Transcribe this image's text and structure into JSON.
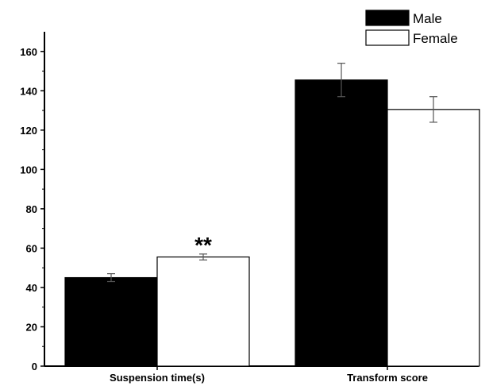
{
  "chart_data": {
    "type": "bar",
    "categories": [
      "Suspension time(s)",
      "Transform score"
    ],
    "series": [
      {
        "name": "Male",
        "values": [
          45,
          145.5
        ],
        "errors": [
          2,
          8.5
        ],
        "color": "#000000"
      },
      {
        "name": "Female",
        "values": [
          55.5,
          130.5
        ],
        "errors": [
          1.5,
          6.5
        ],
        "color": "#ffffff"
      }
    ],
    "ylim": [
      0,
      170
    ],
    "yticks": [
      0,
      20,
      40,
      60,
      80,
      100,
      120,
      140,
      160
    ],
    "annotations": [
      {
        "text": "**",
        "category": 0,
        "series": 1
      }
    ],
    "legend": "top-right",
    "grid": false
  }
}
